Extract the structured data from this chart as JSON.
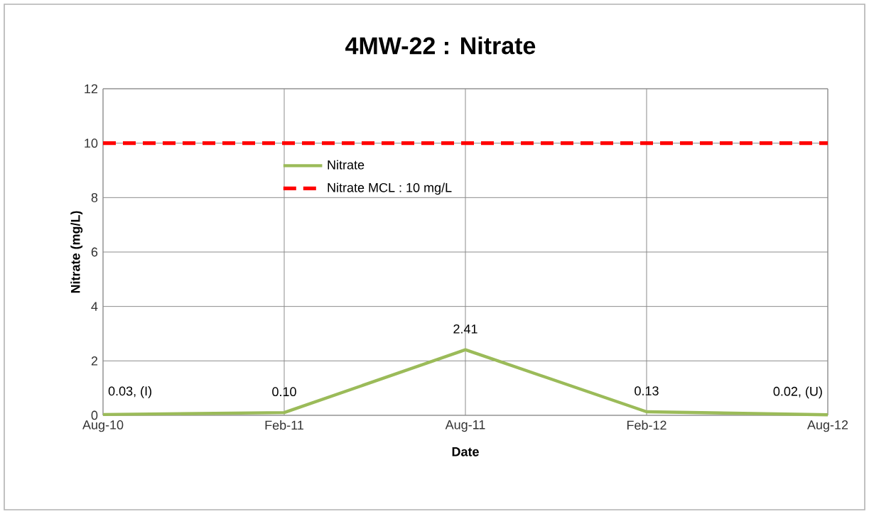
{
  "chart_data": {
    "type": "line",
    "title": "4MW-22 : Nitrate",
    "xlabel": "Date",
    "ylabel": "Nitrate (mg/L)",
    "categories": [
      "Aug-10",
      "Feb-11",
      "Aug-11",
      "Feb-12",
      "Aug-12"
    ],
    "series": [
      {
        "name": "Nitrate",
        "color": "#9bbb59",
        "values": [
          0.03,
          0.1,
          2.41,
          0.13,
          0.02
        ],
        "value_labels": [
          "0.03, (I)",
          "0.10",
          "2.41",
          "0.13",
          "0.02, (U)"
        ],
        "line_style": "solid"
      },
      {
        "name": "Nitrate MCL : 10 mg/L",
        "color": "#ff0000",
        "values": [
          10,
          10,
          10,
          10,
          10
        ],
        "line_style": "dashed"
      }
    ],
    "ylim": [
      0,
      12
    ],
    "yticks": [
      0,
      2,
      4,
      6,
      8,
      10,
      12
    ],
    "grid": true,
    "legend": "top left",
    "marker": "none"
  }
}
